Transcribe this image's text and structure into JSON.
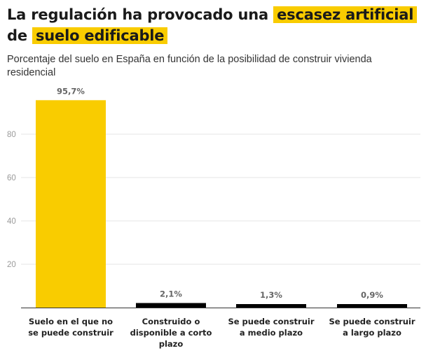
{
  "header": {
    "title_part1": "La regulación ha provocado una",
    "title_highlight1": "escasez artificial",
    "title_part2": "de",
    "title_highlight2": "suelo edificable",
    "subtitle": "Porcentaje del suelo en España en función de la posibilidad de construir vivienda residencial"
  },
  "colors": {
    "highlight": "#f9cc00",
    "bar_primary": "#f9cc00",
    "bar_secondary": "#000000"
  },
  "chart_data": {
    "type": "bar",
    "title": "La regulación ha provocado una escasez artificial de suelo edificable",
    "subtitle": "Porcentaje del suelo en España en función de la posibilidad de construir vivienda residencial",
    "xlabel": "",
    "ylabel": "",
    "ylim": [
      0,
      100
    ],
    "yticks": [
      20,
      40,
      60,
      80
    ],
    "grid": true,
    "categories": [
      "Suelo en el que no se puede construir",
      "Construido o disponible a corto plazo",
      "Se puede construir a medio plazo",
      "Se puede construir a largo plazo"
    ],
    "values": [
      95.7,
      2.1,
      1.3,
      0.9
    ],
    "value_labels": [
      "95,7%",
      "2,1%",
      "1,3%",
      "0,9%"
    ],
    "bar_colors": [
      "#f9cc00",
      "#000000",
      "#000000",
      "#000000"
    ]
  }
}
